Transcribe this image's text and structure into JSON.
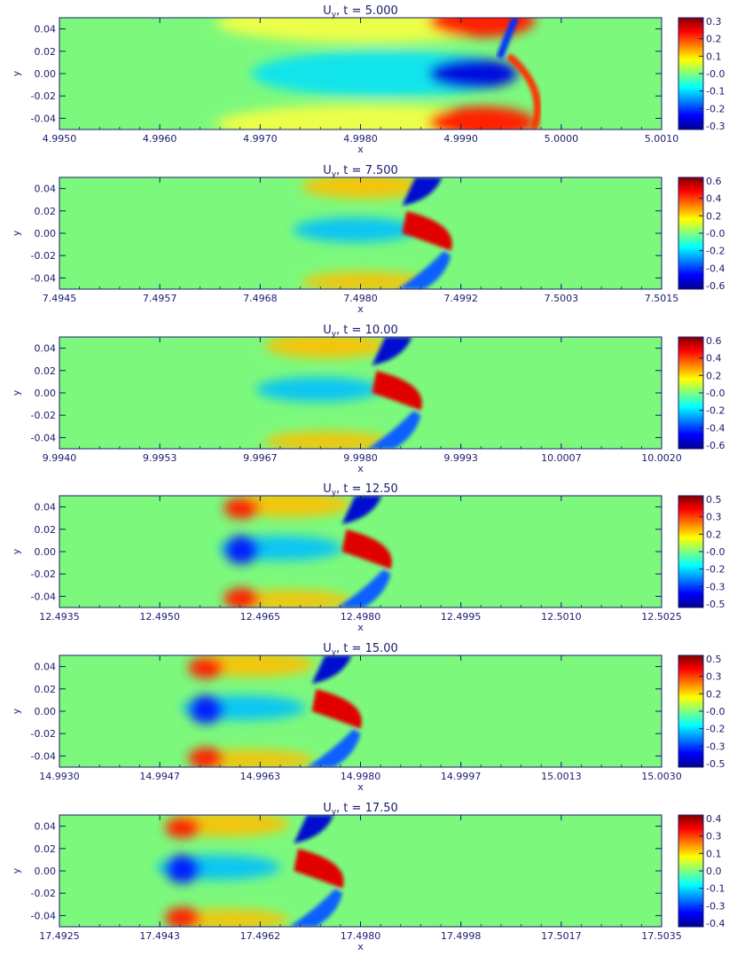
{
  "colors": {
    "ink": "#1a1a6e",
    "background_field": "#7cf97c",
    "colormap": [
      "#00008f",
      "#0000ff",
      "#0080ff",
      "#00ffff",
      "#7fff7f",
      "#ffff00",
      "#ff8000",
      "#ff0000",
      "#800000"
    ]
  },
  "chart_data": [
    {
      "type": "heatmap",
      "title": "U_y, t = 5.000",
      "title_main": "U",
      "title_sub": "y",
      "title_rest": ", t = 5.000",
      "xlabel": "x",
      "ylabel": "y",
      "x_ticks": [
        "4.9950",
        "4.9960",
        "4.9970",
        "4.9980",
        "4.9990",
        "5.0000",
        "5.0010"
      ],
      "y_ticks": [
        "0.04",
        "0.02",
        "0.00",
        "-0.02",
        "-0.04"
      ],
      "colorbar_ticks": [
        "0.3",
        "0.2",
        "0.1",
        "-0.0",
        "-0.1",
        "-0.2",
        "-0.3"
      ],
      "colorbar_range": [
        -0.3,
        0.3
      ],
      "front_x_fraction": 0.79
    },
    {
      "type": "heatmap",
      "title": "U_y, t = 7.500",
      "title_main": "U",
      "title_sub": "y",
      "title_rest": ", t = 7.500",
      "xlabel": "x",
      "ylabel": "y",
      "x_ticks": [
        "7.4945",
        "7.4957",
        "7.4968",
        "7.4980",
        "7.4992",
        "7.5003",
        "7.5015"
      ],
      "y_ticks": [
        "0.04",
        "0.02",
        "0.00",
        "-0.02",
        "-0.04"
      ],
      "colorbar_ticks": [
        "0.6",
        "0.4",
        "0.2",
        "-0.0",
        "-0.2",
        "-0.4",
        "-0.6"
      ],
      "colorbar_range": [
        -0.6,
        0.6
      ],
      "front_x_fraction": 0.65
    },
    {
      "type": "heatmap",
      "title": "U_y, t = 10.00",
      "title_main": "U",
      "title_sub": "y",
      "title_rest": ", t = 10.00",
      "xlabel": "x",
      "ylabel": "y",
      "x_ticks": [
        "9.9940",
        "9.9953",
        "9.9967",
        "9.9980",
        "9.9993",
        "10.0007",
        "10.0020"
      ],
      "y_ticks": [
        "0.04",
        "0.02",
        "0.00",
        "-0.02",
        "-0.04"
      ],
      "colorbar_ticks": [
        "0.6",
        "0.4",
        "0.2",
        "-0.0",
        "-0.2",
        "-0.4",
        "-0.6"
      ],
      "colorbar_range": [
        -0.6,
        0.6
      ],
      "front_x_fraction": 0.6
    },
    {
      "type": "heatmap",
      "title": "U_y, t = 12.50",
      "title_main": "U",
      "title_sub": "y",
      "title_rest": ", t = 12.50",
      "xlabel": "x",
      "ylabel": "y",
      "x_ticks": [
        "12.4935",
        "12.4950",
        "12.4965",
        "12.4980",
        "12.4995",
        "12.5010",
        "12.5025"
      ],
      "y_ticks": [
        "0.04",
        "0.02",
        "0.00",
        "-0.02",
        "-0.04"
      ],
      "colorbar_ticks": [
        "0.5",
        "0.3",
        "0.2",
        "-0.0",
        "-0.2",
        "-0.3",
        "-0.5"
      ],
      "colorbar_range": [
        -0.5,
        0.5
      ],
      "front_x_fraction": 0.55
    },
    {
      "type": "heatmap",
      "title": "U_y, t = 15.00",
      "title_main": "U",
      "title_sub": "y",
      "title_rest": ", t = 15.00",
      "xlabel": "x",
      "ylabel": "y",
      "x_ticks": [
        "14.9930",
        "14.9947",
        "14.9963",
        "14.9980",
        "14.9997",
        "15.0013",
        "15.0030"
      ],
      "y_ticks": [
        "0.04",
        "0.02",
        "0.00",
        "-0.02",
        "-0.04"
      ],
      "colorbar_ticks": [
        "0.5",
        "0.3",
        "0.2",
        "-0.0",
        "-0.2",
        "-0.3",
        "-0.5"
      ],
      "colorbar_range": [
        -0.5,
        0.5
      ],
      "front_x_fraction": 0.5
    },
    {
      "type": "heatmap",
      "title": "U_y, t = 17.50",
      "title_main": "U",
      "title_sub": "y",
      "title_rest": ", t = 17.50",
      "xlabel": "x",
      "ylabel": "y",
      "x_ticks": [
        "17.4925",
        "17.4943",
        "17.4962",
        "17.4980",
        "17.4998",
        "17.5017",
        "17.5035"
      ],
      "y_ticks": [
        "0.04",
        "0.02",
        "0.00",
        "-0.02",
        "-0.04"
      ],
      "colorbar_ticks": [
        "0.4",
        "0.3",
        "0.1",
        "0.0",
        "-0.1",
        "-0.3",
        "-0.4"
      ],
      "colorbar_range": [
        -0.4,
        0.4
      ],
      "front_x_fraction": 0.47
    }
  ]
}
